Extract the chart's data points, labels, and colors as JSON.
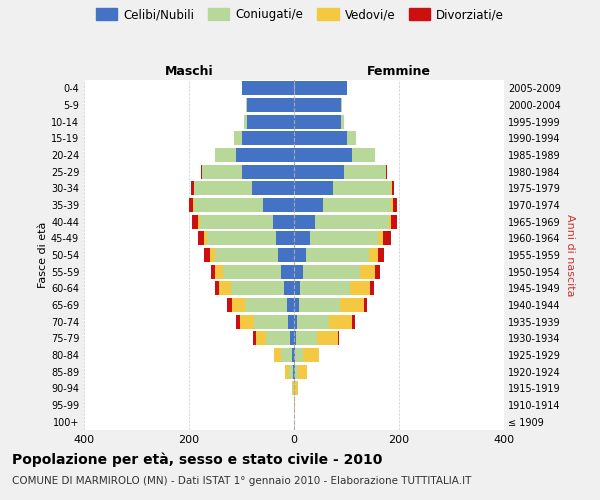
{
  "age_groups": [
    "100+",
    "95-99",
    "90-94",
    "85-89",
    "80-84",
    "75-79",
    "70-74",
    "65-69",
    "60-64",
    "55-59",
    "50-54",
    "45-49",
    "40-44",
    "35-39",
    "30-34",
    "25-29",
    "20-24",
    "15-19",
    "10-14",
    "5-9",
    "0-4"
  ],
  "birth_years": [
    "≤ 1909",
    "1910-1914",
    "1915-1919",
    "1920-1924",
    "1925-1929",
    "1930-1934",
    "1935-1939",
    "1940-1944",
    "1945-1949",
    "1950-1954",
    "1955-1959",
    "1960-1964",
    "1965-1969",
    "1970-1974",
    "1975-1979",
    "1980-1984",
    "1985-1989",
    "1990-1994",
    "1995-1999",
    "2000-2004",
    "2005-2009"
  ],
  "colors": {
    "celibe": "#4472C4",
    "coniugato": "#B8D89A",
    "vedovo": "#F5C842",
    "divorziato": "#CC1010"
  },
  "maschi": {
    "celibe": [
      0,
      0,
      0,
      2,
      4,
      8,
      12,
      14,
      20,
      25,
      30,
      35,
      40,
      60,
      80,
      100,
      110,
      100,
      90,
      90,
      100
    ],
    "coniugato": [
      0,
      0,
      2,
      8,
      20,
      45,
      65,
      80,
      100,
      110,
      120,
      130,
      140,
      130,
      110,
      75,
      40,
      15,
      5,
      2,
      0
    ],
    "vedovo": [
      0,
      0,
      2,
      8,
      15,
      20,
      25,
      25,
      22,
      15,
      10,
      6,
      3,
      2,
      1,
      0,
      0,
      0,
      0,
      0,
      0
    ],
    "divorziato": [
      0,
      0,
      0,
      0,
      0,
      5,
      8,
      8,
      8,
      8,
      12,
      12,
      12,
      8,
      6,
      2,
      0,
      0,
      0,
      0,
      0
    ]
  },
  "femmine": {
    "nubile": [
      0,
      0,
      0,
      1,
      2,
      4,
      6,
      10,
      12,
      18,
      22,
      30,
      40,
      55,
      75,
      95,
      110,
      100,
      90,
      90,
      100
    ],
    "coniugata": [
      0,
      0,
      2,
      6,
      15,
      40,
      60,
      78,
      95,
      108,
      120,
      130,
      140,
      130,
      110,
      80,
      45,
      18,
      6,
      2,
      0
    ],
    "vedova": [
      0,
      2,
      5,
      18,
      30,
      40,
      45,
      45,
      38,
      28,
      18,
      10,
      5,
      3,
      2,
      0,
      0,
      0,
      0,
      0,
      0
    ],
    "divorziata": [
      0,
      0,
      0,
      0,
      0,
      2,
      5,
      6,
      8,
      10,
      12,
      14,
      12,
      8,
      4,
      2,
      0,
      0,
      0,
      0,
      0
    ]
  },
  "xlim": 400,
  "title": "Popolazione per età, sesso e stato civile - 2010",
  "subtitle": "COMUNE DI MARMIROLO (MN) - Dati ISTAT 1° gennaio 2010 - Elaborazione TUTTITALIA.IT",
  "label_maschi": "Maschi",
  "label_femmine": "Femmine",
  "ylabel_left": "Fasce di età",
  "ylabel_right": "Anni di nascita",
  "background_color": "#f0f0f0",
  "plot_background": "#ffffff",
  "grid_color": "#cccccc",
  "legend": [
    "Celibi/Nubili",
    "Coniugati/e",
    "Vedovi/e",
    "Divorziati/e"
  ]
}
